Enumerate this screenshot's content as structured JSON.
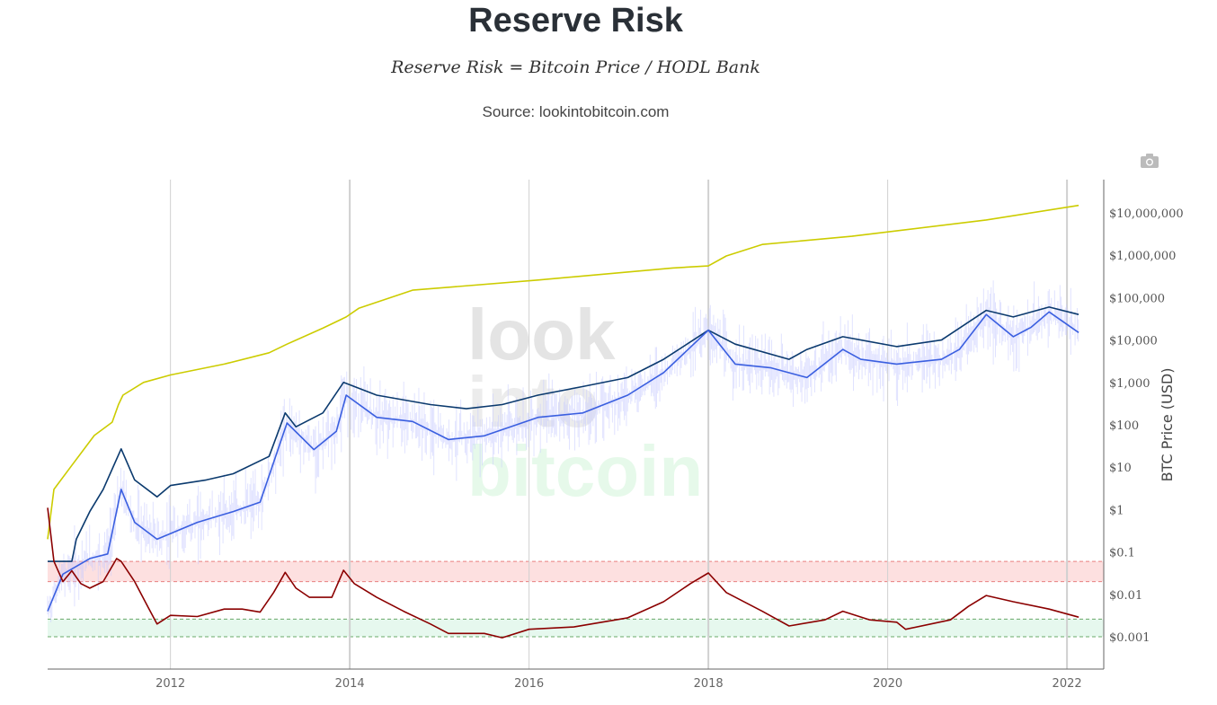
{
  "header": {
    "title": "Reserve Risk",
    "formula": "Reserve Risk = Bitcoin Price / HODL Bank",
    "source": "Source: lookintobitcoin.com"
  },
  "toolbar": {
    "camera_icon": "camera-icon"
  },
  "watermark": [
    "look",
    "into",
    "bitcoin"
  ],
  "chart_data": {
    "type": "line",
    "title": "Reserve Risk",
    "ylabel": "BTC Price (USD)",
    "yscale": "log",
    "ylim": [
      0.0004,
      60000000
    ],
    "xlim": [
      2010.63,
      2022.41
    ],
    "x_ticks": [
      {
        "v": 2012,
        "label": "2012"
      },
      {
        "v": 2014,
        "label": "2014"
      },
      {
        "v": 2016,
        "label": "2016"
      },
      {
        "v": 2018,
        "label": "2018"
      },
      {
        "v": 2020,
        "label": "2020"
      },
      {
        "v": 2022,
        "label": "2022"
      }
    ],
    "y_ticks": [
      {
        "v": 10000000,
        "label": "$10,000,000"
      },
      {
        "v": 1000000,
        "label": "$1,000,000"
      },
      {
        "v": 100000,
        "label": "$100,000"
      },
      {
        "v": 10000,
        "label": "$10,000"
      },
      {
        "v": 1000,
        "label": "$1,000"
      },
      {
        "v": 100,
        "label": "$100"
      },
      {
        "v": 10,
        "label": "$10"
      },
      {
        "v": 1,
        "label": "$1"
      },
      {
        "v": 0.1,
        "label": "$0.1"
      },
      {
        "v": 0.01,
        "label": "$0.01"
      },
      {
        "v": 0.001,
        "label": "$0.001"
      }
    ],
    "bands": [
      {
        "id": "red-band",
        "from": 0.02,
        "to": 0.06,
        "fill": "#fde0e0",
        "stroke": "#e88080"
      },
      {
        "id": "green-band",
        "from": 0.001,
        "to": 0.0026,
        "fill": "#e6f8ee",
        "stroke": "#6aa86a"
      }
    ],
    "series": [
      {
        "id": "hodl-bank",
        "color": "#cccc00",
        "points": [
          [
            2010.63,
            0.2
          ],
          [
            2010.7,
            3
          ],
          [
            2010.9,
            11
          ],
          [
            2011.15,
            56
          ],
          [
            2011.35,
            115
          ],
          [
            2011.42,
            300
          ],
          [
            2011.47,
            500
          ],
          [
            2011.7,
            1000
          ],
          [
            2012.0,
            1500
          ],
          [
            2012.6,
            2700
          ],
          [
            2013.1,
            5000
          ],
          [
            2013.3,
            8000
          ],
          [
            2013.7,
            19000
          ],
          [
            2013.96,
            35000
          ],
          [
            2014.1,
            56000
          ],
          [
            2014.7,
            150000
          ],
          [
            2016.1,
            260000
          ],
          [
            2017.6,
            500000
          ],
          [
            2018.0,
            560000
          ],
          [
            2018.2,
            960000
          ],
          [
            2018.6,
            1800000
          ],
          [
            2019.6,
            2800000
          ],
          [
            2021.1,
            6800000
          ],
          [
            2022.13,
            15000000
          ]
        ]
      },
      {
        "id": "btc-price",
        "color": "#0b3a6e",
        "points": [
          [
            2010.63,
            0.06
          ],
          [
            2010.9,
            0.06
          ],
          [
            2010.95,
            0.2
          ],
          [
            2011.1,
            0.9
          ],
          [
            2011.25,
            3
          ],
          [
            2011.45,
            27
          ],
          [
            2011.6,
            5
          ],
          [
            2011.85,
            2
          ],
          [
            2012.0,
            3.7
          ],
          [
            2012.4,
            5
          ],
          [
            2012.7,
            7
          ],
          [
            2013.1,
            18
          ],
          [
            2013.28,
            190
          ],
          [
            2013.4,
            90
          ],
          [
            2013.7,
            190
          ],
          [
            2013.93,
            1000
          ],
          [
            2014.3,
            500
          ],
          [
            2014.9,
            300
          ],
          [
            2015.3,
            240
          ],
          [
            2015.7,
            300
          ],
          [
            2016.1,
            500
          ],
          [
            2016.6,
            800
          ],
          [
            2017.1,
            1300
          ],
          [
            2017.5,
            3500
          ],
          [
            2018.0,
            17000
          ],
          [
            2018.3,
            8000
          ],
          [
            2018.9,
            3500
          ],
          [
            2019.1,
            6000
          ],
          [
            2019.5,
            12000
          ],
          [
            2020.1,
            7000
          ],
          [
            2020.6,
            10000
          ],
          [
            2021.1,
            50000
          ],
          [
            2021.4,
            35000
          ],
          [
            2021.8,
            60000
          ],
          [
            2022.13,
            40000
          ]
        ]
      },
      {
        "id": "price-average",
        "color": "#3a5fe0",
        "points": [
          [
            2010.63,
            0.004
          ],
          [
            2010.8,
            0.03
          ],
          [
            2011.1,
            0.07
          ],
          [
            2011.3,
            0.09
          ],
          [
            2011.45,
            3
          ],
          [
            2011.6,
            0.5
          ],
          [
            2011.85,
            0.2
          ],
          [
            2012.3,
            0.5
          ],
          [
            2012.7,
            0.9
          ],
          [
            2013.0,
            1.5
          ],
          [
            2013.3,
            110
          ],
          [
            2013.6,
            26
          ],
          [
            2013.85,
            70
          ],
          [
            2013.96,
            500
          ],
          [
            2014.3,
            150
          ],
          [
            2014.7,
            120
          ],
          [
            2015.1,
            45
          ],
          [
            2015.5,
            55
          ],
          [
            2016.1,
            150
          ],
          [
            2016.6,
            190
          ],
          [
            2017.1,
            500
          ],
          [
            2017.5,
            1700
          ],
          [
            2018.0,
            17000
          ],
          [
            2018.3,
            2700
          ],
          [
            2018.7,
            2200
          ],
          [
            2019.1,
            1300
          ],
          [
            2019.5,
            6000
          ],
          [
            2019.7,
            3500
          ],
          [
            2020.1,
            2700
          ],
          [
            2020.6,
            3500
          ],
          [
            2020.8,
            6000
          ],
          [
            2021.1,
            40000
          ],
          [
            2021.4,
            12000
          ],
          [
            2021.6,
            20000
          ],
          [
            2021.8,
            46000
          ],
          [
            2022.13,
            15000
          ]
        ]
      },
      {
        "id": "reserve-risk",
        "color": "#8b0000",
        "points": [
          [
            2010.63,
            1.1
          ],
          [
            2010.7,
            0.06
          ],
          [
            2010.8,
            0.02
          ],
          [
            2010.9,
            0.036
          ],
          [
            2011.0,
            0.018
          ],
          [
            2011.1,
            0.014
          ],
          [
            2011.25,
            0.02
          ],
          [
            2011.4,
            0.07
          ],
          [
            2011.45,
            0.06
          ],
          [
            2011.6,
            0.02
          ],
          [
            2011.75,
            0.005
          ],
          [
            2011.85,
            0.002
          ],
          [
            2012.0,
            0.0032
          ],
          [
            2012.3,
            0.003
          ],
          [
            2012.6,
            0.0045
          ],
          [
            2012.8,
            0.0045
          ],
          [
            2013.0,
            0.0038
          ],
          [
            2013.15,
            0.011
          ],
          [
            2013.28,
            0.033
          ],
          [
            2013.4,
            0.014
          ],
          [
            2013.55,
            0.0085
          ],
          [
            2013.8,
            0.0085
          ],
          [
            2013.93,
            0.037
          ],
          [
            2014.05,
            0.018
          ],
          [
            2014.3,
            0.0085
          ],
          [
            2014.6,
            0.004
          ],
          [
            2014.9,
            0.002
          ],
          [
            2015.1,
            0.0012
          ],
          [
            2015.5,
            0.0012
          ],
          [
            2015.7,
            0.00095
          ],
          [
            2016.0,
            0.0015
          ],
          [
            2016.5,
            0.0017
          ],
          [
            2017.1,
            0.0028
          ],
          [
            2017.5,
            0.0067
          ],
          [
            2017.8,
            0.018
          ],
          [
            2018.0,
            0.032
          ],
          [
            2018.2,
            0.011
          ],
          [
            2018.6,
            0.004
          ],
          [
            2018.9,
            0.0018
          ],
          [
            2019.3,
            0.0025
          ],
          [
            2019.5,
            0.004
          ],
          [
            2019.8,
            0.0025
          ],
          [
            2020.1,
            0.0022
          ],
          [
            2020.2,
            0.0015
          ],
          [
            2020.7,
            0.0025
          ],
          [
            2020.9,
            0.0052
          ],
          [
            2021.1,
            0.0094
          ],
          [
            2021.4,
            0.0067
          ],
          [
            2021.8,
            0.0045
          ],
          [
            2022.13,
            0.0029
          ]
        ]
      }
    ]
  }
}
